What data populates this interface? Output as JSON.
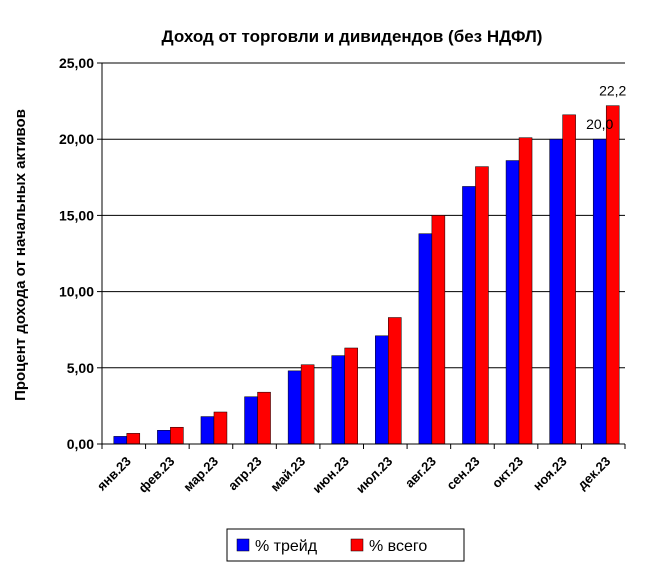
{
  "chart_data": {
    "type": "bar",
    "title": "Доход от торговли и дивидендов (без НДФЛ)",
    "ylabel": "Процент дохода от начальных активов",
    "xlabel": "",
    "ylim": [
      0,
      25
    ],
    "yticks": [
      "0,00",
      "5,00",
      "10,00",
      "15,00",
      "20,00",
      "25,00"
    ],
    "grid": true,
    "legend_position": "bottom",
    "categories": [
      "янв.23",
      "фев.23",
      "мар.23",
      "апр.23",
      "май.23",
      "июн.23",
      "июл.23",
      "авг.23",
      "сен.23",
      "окт.23",
      "ноя.23",
      "дек.23"
    ],
    "series": [
      {
        "name": "% трейд",
        "color": "#0000ff",
        "values": [
          0.5,
          0.9,
          1.8,
          3.1,
          4.8,
          5.8,
          7.1,
          13.8,
          16.9,
          18.6,
          20.0,
          20.0
        ]
      },
      {
        "name": "% всего",
        "color": "#ff0000",
        "values": [
          0.7,
          1.1,
          2.1,
          3.4,
          5.2,
          6.3,
          8.3,
          15.0,
          18.2,
          20.1,
          21.6,
          22.2
        ]
      }
    ],
    "data_labels": [
      {
        "series": 0,
        "index": 11,
        "text": "20,0"
      },
      {
        "series": 1,
        "index": 11,
        "text": "22,2"
      }
    ]
  }
}
